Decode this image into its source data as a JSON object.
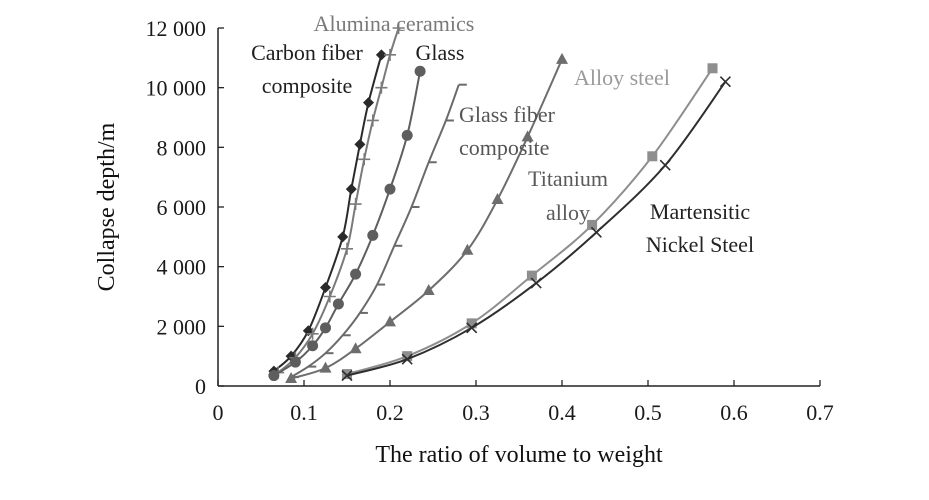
{
  "chart_data": {
    "type": "line",
    "title": "",
    "xlabel": "The ratio of volume to weight",
    "ylabel": "Collapse depth/m",
    "xlim": [
      0,
      0.7
    ],
    "ylim": [
      0,
      12000
    ],
    "x_ticks": [
      0,
      0.1,
      0.2,
      0.3,
      0.4,
      0.5,
      0.6,
      0.7
    ],
    "x_tick_labels": [
      "0",
      "0.1",
      "0.2",
      "0.3",
      "0.4",
      "0.5",
      "0.6",
      "0.7"
    ],
    "y_ticks": [
      0,
      2000,
      4000,
      6000,
      8000,
      10000,
      12000
    ],
    "y_tick_labels": [
      "0",
      "2 000",
      "4 000",
      "6 000",
      "8 000",
      "10 000",
      "12 000"
    ],
    "grid": false,
    "legend": "none",
    "series": [
      {
        "name": "Carbon fiber composite",
        "label_lines": [
          "Carbon fiber",
          "composite"
        ],
        "color": "#2a2a2a",
        "label_color": "#1f1f1f",
        "marker": "diamond",
        "points": [
          [
            0.065,
            500
          ],
          [
            0.085,
            1000
          ],
          [
            0.105,
            1850
          ],
          [
            0.125,
            3300
          ],
          [
            0.145,
            5000
          ],
          [
            0.155,
            6600
          ],
          [
            0.165,
            8100
          ],
          [
            0.175,
            9500
          ],
          [
            0.19,
            11100
          ]
        ]
      },
      {
        "name": "Alumina ceramics",
        "label_lines": [
          "Alumina ceramics"
        ],
        "color": "#7a7a7a",
        "label_color": "#7a7a7a",
        "marker": "plus",
        "points": [
          [
            0.07,
            450
          ],
          [
            0.09,
            950
          ],
          [
            0.11,
            1750
          ],
          [
            0.13,
            3000
          ],
          [
            0.15,
            4600
          ],
          [
            0.16,
            6100
          ],
          [
            0.17,
            7600
          ],
          [
            0.18,
            8900
          ],
          [
            0.19,
            10000
          ],
          [
            0.2,
            11100
          ],
          [
            0.21,
            12000
          ]
        ]
      },
      {
        "name": "Glass",
        "label_lines": [
          "Glass"
        ],
        "color": "#5e5e5e",
        "label_color": "#1f1f1f",
        "marker": "circle",
        "points": [
          [
            0.065,
            350
          ],
          [
            0.09,
            800
          ],
          [
            0.11,
            1350
          ],
          [
            0.125,
            1950
          ],
          [
            0.14,
            2750
          ],
          [
            0.16,
            3750
          ],
          [
            0.18,
            5050
          ],
          [
            0.2,
            6600
          ],
          [
            0.22,
            8400
          ],
          [
            0.235,
            10550
          ]
        ]
      },
      {
        "name": "Glass fiber composite",
        "label_lines": [
          "Glass fiber",
          "composite"
        ],
        "color": "#6a6a6a",
        "label_color": "#555555",
        "marker": "dash",
        "points": [
          [
            0.085,
            300
          ],
          [
            0.105,
            650
          ],
          [
            0.125,
            1100
          ],
          [
            0.145,
            1700
          ],
          [
            0.165,
            2450
          ],
          [
            0.185,
            3400
          ],
          [
            0.205,
            4700
          ],
          [
            0.225,
            6000
          ],
          [
            0.245,
            7500
          ],
          [
            0.265,
            8900
          ],
          [
            0.28,
            10100
          ]
        ]
      },
      {
        "name": "Titanium alloy",
        "label_lines": [
          "Titanium",
          "alloy"
        ],
        "color": "#6d6d6d",
        "label_color": "#5a5a5a",
        "marker": "triangle",
        "points": [
          [
            0.085,
            250
          ],
          [
            0.125,
            600
          ],
          [
            0.16,
            1250
          ],
          [
            0.2,
            2150
          ],
          [
            0.245,
            3200
          ],
          [
            0.29,
            4550
          ],
          [
            0.325,
            6250
          ],
          [
            0.36,
            8350
          ],
          [
            0.4,
            10950
          ]
        ]
      },
      {
        "name": "Alloy steel",
        "label_lines": [
          "Alloy steel"
        ],
        "color": "#8e8e8e",
        "label_color": "#9a9a9a",
        "marker": "square",
        "points": [
          [
            0.15,
            400
          ],
          [
            0.22,
            1000
          ],
          [
            0.295,
            2100
          ],
          [
            0.365,
            3700
          ],
          [
            0.435,
            5400
          ],
          [
            0.505,
            7700
          ],
          [
            0.575,
            10650
          ]
        ]
      },
      {
        "name": "Martensitic Nickel Steel",
        "label_lines": [
          "Martensitic",
          "Nickel Steel"
        ],
        "color": "#2e2e2e",
        "label_color": "#222222",
        "marker": "cross",
        "points": [
          [
            0.15,
            350
          ],
          [
            0.22,
            900
          ],
          [
            0.295,
            1950
          ],
          [
            0.37,
            3450
          ],
          [
            0.44,
            5150
          ],
          [
            0.52,
            7400
          ],
          [
            0.59,
            10200
          ]
        ]
      }
    ]
  }
}
